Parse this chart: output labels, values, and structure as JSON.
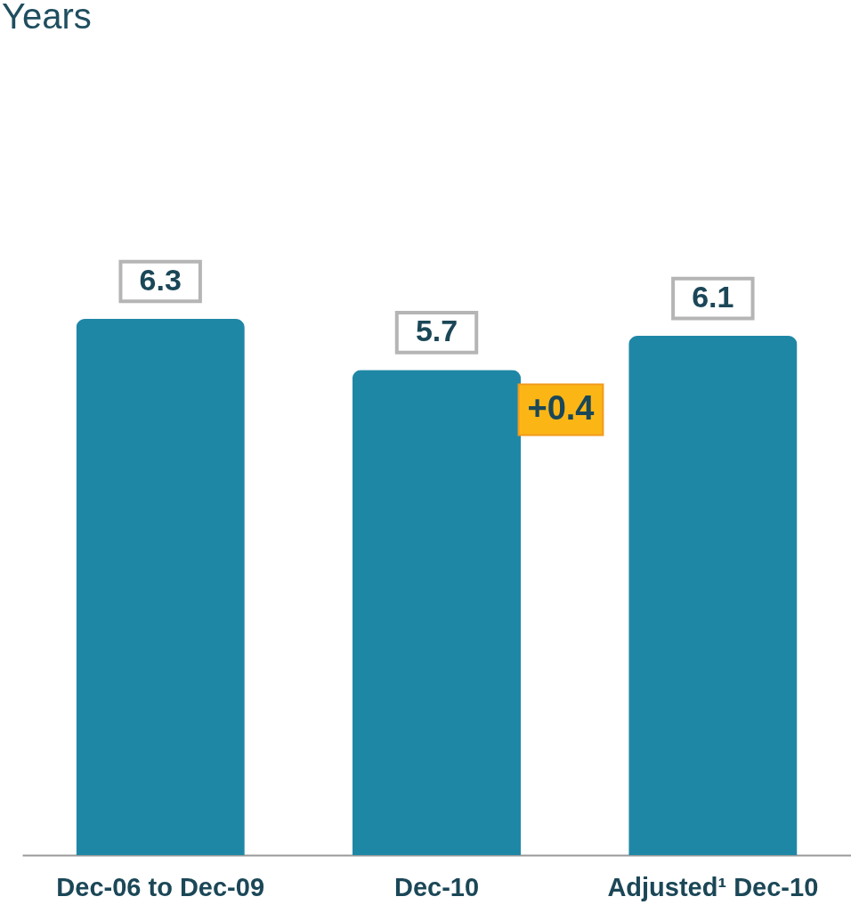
{
  "chart_data": {
    "type": "bar",
    "title": "Years",
    "categories": [
      "Dec-06 to Dec-09",
      "Dec-10",
      "Adjusted¹ Dec-10"
    ],
    "values": [
      6.3,
      5.7,
      6.1
    ],
    "color": "#1f87a6",
    "data_labels": true,
    "grid": false,
    "annotations": [
      "+0.4"
    ]
  }
}
